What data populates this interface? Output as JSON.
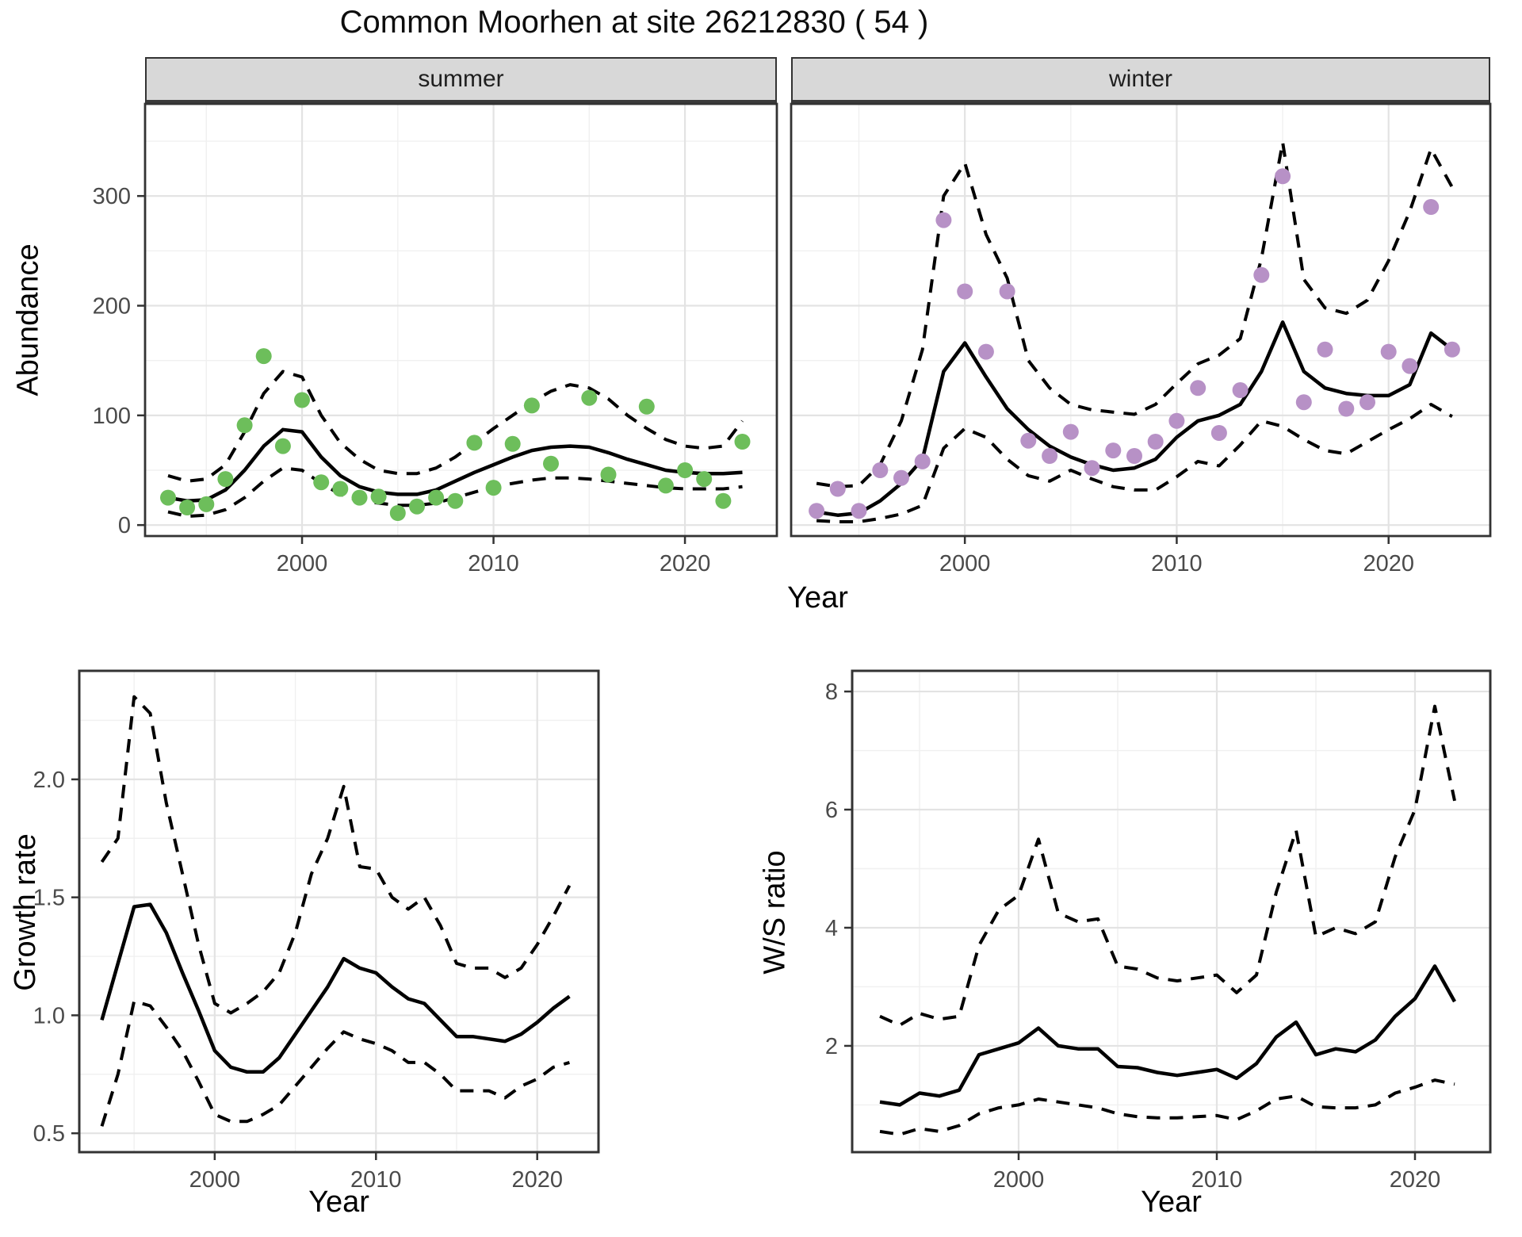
{
  "title": "Common Moorhen at site 26212830 ( 54 )",
  "chart_data": [
    {
      "id": "abundance-summer",
      "type": "scatter+line",
      "facet": "summer",
      "xlabel": "Year",
      "ylabel": "Abundance",
      "xlim": [
        1991.8,
        2024.8
      ],
      "ylim": [
        -10,
        384
      ],
      "x_ticks": [
        2000,
        2010,
        2020
      ],
      "x_tick_labels": [
        "2000",
        "2010",
        "2020"
      ],
      "x_minor": [
        1995,
        2005,
        2015
      ],
      "y_ticks": [
        0,
        100,
        200,
        300
      ],
      "y_tick_labels": [
        "0",
        "100",
        "200",
        "300"
      ],
      "y_minor": [
        50,
        150,
        250,
        350
      ],
      "point_color": "#6dbe5b",
      "points": {
        "x": [
          1993,
          1994,
          1995,
          1996,
          1997,
          1998,
          1999,
          2000,
          2001,
          2002,
          2003,
          2004,
          2005,
          2006,
          2007,
          2008,
          2009,
          2010,
          2011,
          2012,
          2013,
          2015,
          2016,
          2018,
          2019,
          2020,
          2021,
          2022,
          2023
        ],
        "y": [
          25,
          16,
          19,
          42,
          91,
          154,
          72,
          114,
          39,
          33,
          25,
          26,
          11,
          17,
          25,
          22,
          75,
          34,
          74,
          109,
          56,
          116,
          46,
          108,
          36,
          50,
          42,
          22,
          76
        ]
      },
      "line_x": [
        1993,
        1994,
        1995,
        1996,
        1997,
        1998,
        1999,
        2000,
        2001,
        2002,
        2003,
        2004,
        2005,
        2006,
        2007,
        2008,
        2009,
        2010,
        2011,
        2012,
        2013,
        2014,
        2015,
        2016,
        2017,
        2018,
        2019,
        2020,
        2021,
        2022,
        2023
      ],
      "series": [
        {
          "name": "fit",
          "style": "solid",
          "y": [
            25,
            22,
            23,
            32,
            50,
            72,
            87,
            85,
            62,
            45,
            35,
            30,
            28,
            28,
            32,
            40,
            48,
            55,
            62,
            68,
            71,
            72,
            71,
            66,
            60,
            55,
            50,
            48,
            47,
            47,
            48
          ]
        },
        {
          "name": "upper-ci",
          "style": "dashed",
          "y": [
            45,
            40,
            42,
            55,
            85,
            120,
            140,
            135,
            100,
            75,
            60,
            50,
            47,
            47,
            52,
            62,
            75,
            88,
            100,
            112,
            122,
            128,
            125,
            115,
            100,
            88,
            78,
            72,
            70,
            72,
            95
          ]
        },
        {
          "name": "lower-ci",
          "style": "dashed",
          "y": [
            12,
            8,
            9,
            14,
            25,
            40,
            52,
            50,
            38,
            28,
            22,
            20,
            18,
            18,
            20,
            25,
            30,
            35,
            38,
            41,
            43,
            43,
            42,
            40,
            38,
            36,
            34,
            33,
            33,
            33,
            35
          ]
        }
      ]
    },
    {
      "id": "abundance-winter",
      "type": "scatter+line",
      "facet": "winter",
      "xlabel": "Year",
      "ylabel": "Abundance",
      "xlim": [
        1991.8,
        2024.8
      ],
      "ylim": [
        -10,
        384
      ],
      "x_ticks": [
        2000,
        2010,
        2020
      ],
      "x_tick_labels": [
        "2000",
        "2010",
        "2020"
      ],
      "x_minor": [
        1995,
        2005,
        2015
      ],
      "y_ticks": [
        0,
        100,
        200,
        300
      ],
      "y_tick_labels": [
        "0",
        "100",
        "200",
        "300"
      ],
      "y_minor": [
        50,
        150,
        250,
        350
      ],
      "point_color": "#b791c6",
      "points": {
        "x": [
          1993,
          1994,
          1995,
          1996,
          1997,
          1998,
          1999,
          2000,
          2001,
          2002,
          2003,
          2004,
          2005,
          2006,
          2007,
          2008,
          2009,
          2010,
          2011,
          2012,
          2013,
          2014,
          2015,
          2016,
          2017,
          2018,
          2019,
          2020,
          2021,
          2022,
          2023
        ],
        "y": [
          13,
          33,
          13,
          50,
          43,
          58,
          278,
          213,
          158,
          213,
          77,
          63,
          85,
          52,
          68,
          63,
          76,
          95,
          125,
          84,
          123,
          228,
          318,
          112,
          160,
          106,
          112,
          158,
          145,
          290,
          160
        ]
      },
      "line_x": [
        1993,
        1994,
        1995,
        1996,
        1997,
        1998,
        1999,
        2000,
        2001,
        2002,
        2003,
        2004,
        2005,
        2006,
        2007,
        2008,
        2009,
        2010,
        2011,
        2012,
        2013,
        2014,
        2015,
        2016,
        2017,
        2018,
        2019,
        2020,
        2021,
        2022,
        2023
      ],
      "series": [
        {
          "name": "fit",
          "style": "solid",
          "y": [
            12,
            9,
            11,
            22,
            38,
            60,
            140,
            166,
            135,
            106,
            87,
            72,
            62,
            55,
            50,
            52,
            60,
            80,
            95,
            100,
            110,
            140,
            185,
            140,
            125,
            120,
            118,
            118,
            128,
            175,
            160
          ]
        },
        {
          "name": "upper-ci",
          "style": "dashed",
          "y": [
            38,
            35,
            36,
            55,
            95,
            160,
            300,
            330,
            265,
            225,
            150,
            125,
            110,
            105,
            103,
            101,
            110,
            129,
            147,
            155,
            170,
            243,
            349,
            224,
            198,
            193,
            205,
            241,
            286,
            343,
            308
          ]
        },
        {
          "name": "lower-ci",
          "style": "dashed",
          "y": [
            4,
            3,
            3,
            6,
            10,
            18,
            70,
            88,
            80,
            60,
            45,
            40,
            50,
            42,
            35,
            32,
            32,
            44,
            58,
            54,
            73,
            95,
            90,
            78,
            68,
            65,
            76,
            87,
            97,
            110,
            99
          ]
        }
      ]
    },
    {
      "id": "growth-rate",
      "type": "line",
      "facet": "",
      "xlabel": "Year",
      "ylabel": "Growth rate",
      "xlim": [
        1991.6,
        2023.8
      ],
      "ylim": [
        0.42,
        2.46
      ],
      "x_ticks": [
        2000,
        2010,
        2020
      ],
      "x_tick_labels": [
        "2000",
        "2010",
        "2020"
      ],
      "x_minor": [
        1995,
        2005,
        2015
      ],
      "y_ticks": [
        0.5,
        1.0,
        1.5,
        2.0
      ],
      "y_tick_labels": [
        "0.5",
        "1.0",
        "1.5",
        "2.0"
      ],
      "y_minor": [
        0.75,
        1.25,
        1.75,
        2.25
      ],
      "line_x": [
        1993,
        1994,
        1995,
        1996,
        1997,
        1998,
        1999,
        2000,
        2001,
        2002,
        2003,
        2004,
        2005,
        2006,
        2007,
        2008,
        2009,
        2010,
        2011,
        2012,
        2013,
        2014,
        2015,
        2016,
        2017,
        2018,
        2019,
        2020,
        2021,
        2022
      ],
      "series": [
        {
          "name": "fit",
          "style": "solid",
          "y": [
            0.98,
            1.22,
            1.46,
            1.47,
            1.35,
            1.18,
            1.02,
            0.85,
            0.78,
            0.76,
            0.76,
            0.82,
            0.92,
            1.02,
            1.12,
            1.24,
            1.2,
            1.18,
            1.12,
            1.07,
            1.05,
            0.98,
            0.91,
            0.91,
            0.9,
            0.89,
            0.92,
            0.97,
            1.03,
            1.08
          ]
        },
        {
          "name": "upper-ci",
          "style": "dashed",
          "y": [
            1.65,
            1.75,
            2.35,
            2.28,
            1.9,
            1.6,
            1.3,
            1.05,
            1.01,
            1.05,
            1.1,
            1.18,
            1.35,
            1.6,
            1.75,
            1.97,
            1.63,
            1.62,
            1.5,
            1.45,
            1.5,
            1.38,
            1.22,
            1.2,
            1.2,
            1.16,
            1.2,
            1.3,
            1.42,
            1.55
          ]
        },
        {
          "name": "lower-ci",
          "style": "dashed",
          "y": [
            0.53,
            0.75,
            1.06,
            1.04,
            0.95,
            0.85,
            0.72,
            0.58,
            0.55,
            0.55,
            0.58,
            0.62,
            0.7,
            0.78,
            0.86,
            0.93,
            0.9,
            0.88,
            0.85,
            0.8,
            0.8,
            0.75,
            0.68,
            0.68,
            0.68,
            0.65,
            0.7,
            0.73,
            0.78,
            0.8
          ]
        }
      ]
    },
    {
      "id": "ws-ratio",
      "type": "line",
      "facet": "",
      "xlabel": "Year",
      "ylabel": "W/S ratio",
      "xlim": [
        1991.6,
        2023.8
      ],
      "ylim": [
        0.2,
        8.35
      ],
      "x_ticks": [
        2000,
        2010,
        2020
      ],
      "x_tick_labels": [
        "2000",
        "2010",
        "2020"
      ],
      "x_minor": [
        1995,
        2005,
        2015
      ],
      "y_ticks": [
        2,
        4,
        6,
        8
      ],
      "y_tick_labels": [
        "2",
        "4",
        "6",
        "8"
      ],
      "y_minor": [
        1,
        3,
        5,
        7
      ],
      "line_x": [
        1993,
        1994,
        1995,
        1996,
        1997,
        1998,
        1999,
        2000,
        2001,
        2002,
        2003,
        2004,
        2005,
        2006,
        2007,
        2008,
        2009,
        2010,
        2011,
        2012,
        2013,
        2014,
        2015,
        2016,
        2017,
        2018,
        2019,
        2020,
        2021,
        2022
      ],
      "series": [
        {
          "name": "fit",
          "style": "solid",
          "y": [
            1.05,
            1.0,
            1.2,
            1.15,
            1.25,
            1.85,
            1.95,
            2.05,
            2.3,
            2.0,
            1.95,
            1.95,
            1.65,
            1.63,
            1.55,
            1.5,
            1.55,
            1.6,
            1.45,
            1.7,
            2.15,
            2.4,
            1.85,
            1.95,
            1.9,
            2.1,
            2.5,
            2.8,
            3.35,
            2.75
          ]
        },
        {
          "name": "upper-ci",
          "style": "dashed",
          "y": [
            2.5,
            2.35,
            2.55,
            2.45,
            2.5,
            3.7,
            4.3,
            4.55,
            5.5,
            4.25,
            4.1,
            4.15,
            3.35,
            3.3,
            3.15,
            3.1,
            3.15,
            3.2,
            2.9,
            3.2,
            4.6,
            5.65,
            3.85,
            4.0,
            3.9,
            4.1,
            5.2,
            6.0,
            7.75,
            6.15
          ]
        },
        {
          "name": "lower-ci",
          "style": "dashed",
          "y": [
            0.55,
            0.5,
            0.6,
            0.55,
            0.65,
            0.85,
            0.95,
            1.0,
            1.1,
            1.05,
            1.0,
            0.95,
            0.85,
            0.8,
            0.78,
            0.78,
            0.8,
            0.82,
            0.75,
            0.9,
            1.1,
            1.15,
            0.97,
            0.95,
            0.95,
            1.0,
            1.2,
            1.3,
            1.42,
            1.35
          ]
        }
      ]
    }
  ],
  "style": {
    "point_green": "#6dbe5b",
    "point_purple": "#b791c6",
    "line_color": "#000000",
    "grid_major": "#e3e3e3",
    "grid_minor": "#f0f0f0",
    "panel_border": "#333333",
    "strip_bg": "#d8d8d8",
    "tick_text": "#4a4a4a"
  }
}
